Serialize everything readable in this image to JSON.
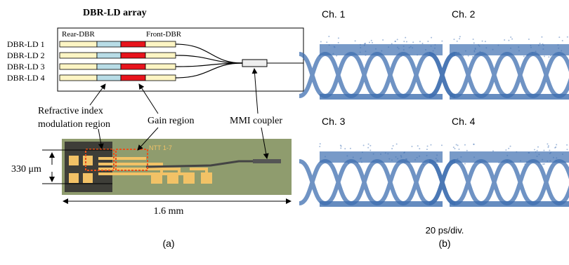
{
  "panel_a": {
    "title": "DBR-LD array",
    "rear_label": "Rear-DBR",
    "front_label": "Front-DBR",
    "lasers": [
      "DBR-LD 1",
      "DBR-LD 2",
      "DBR-LD 3",
      "DBR-LD 4"
    ],
    "refractive_index_label": [
      "Refractive index",
      "modulation region"
    ],
    "gain_label": "Gain region",
    "mmi_label": "MMI coupler",
    "chip_marking": "NTT 1-7",
    "height_label": "330 μm",
    "length_label": "1.6 mm",
    "caption": "(a)"
  },
  "panel_b": {
    "channels": [
      "Ch. 1",
      "Ch. 2",
      "Ch. 3",
      "Ch. 4"
    ],
    "time_scale": "20 ps/div.",
    "caption": "(b)"
  }
}
